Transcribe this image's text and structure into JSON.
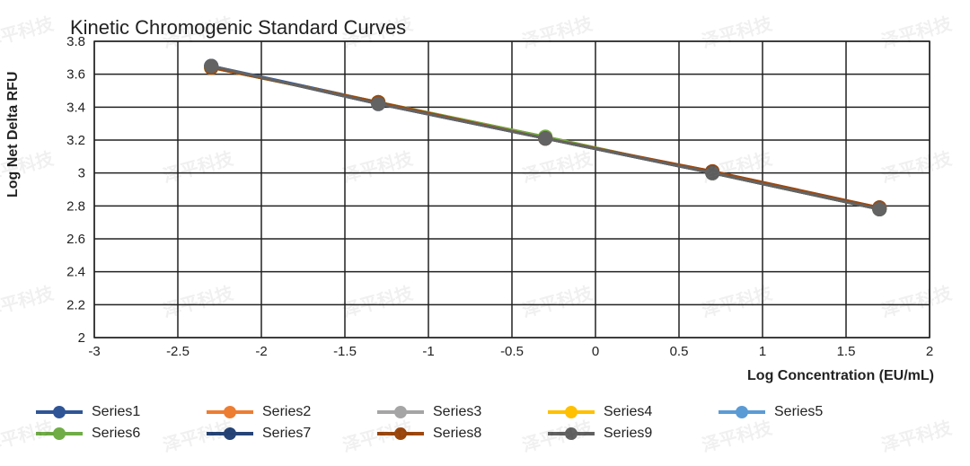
{
  "title": "Kinetic Chromogenic Standard Curves",
  "xlabel": "Log Concentration (EU/mL)",
  "ylabel": "Log Net Delta RFU",
  "chart": {
    "type": "line",
    "xlim": [
      -3,
      2
    ],
    "ylim": [
      2,
      3.8
    ],
    "xtick_step": 0.5,
    "ytick_step": 0.2,
    "xticks": [
      -3,
      -2.5,
      -2,
      -1.5,
      -1,
      -0.5,
      0,
      0.5,
      1,
      1.5,
      2
    ],
    "yticks": [
      2,
      2.2,
      2.4,
      2.6,
      2.8,
      3,
      3.2,
      3.4,
      3.6,
      3.8
    ],
    "background_color": "#ffffff",
    "grid_color": "#222222",
    "grid_width": 1.5,
    "marker": "circle",
    "marker_size": 8,
    "line_width": 3,
    "x": [
      -2.3,
      -1.3,
      -0.3,
      0.7,
      1.7
    ],
    "series": [
      {
        "label": "Series1",
        "color": "#2f5597",
        "y": [
          3.65,
          3.43,
          3.21,
          3.0,
          2.78
        ]
      },
      {
        "label": "Series2",
        "color": "#ed7d31",
        "y": [
          3.64,
          3.43,
          3.22,
          3.0,
          2.79
        ]
      },
      {
        "label": "Series3",
        "color": "#a5a5a5",
        "y": [
          3.65,
          3.42,
          3.21,
          3.01,
          2.79
        ]
      },
      {
        "label": "Series4",
        "color": "#ffc000",
        "y": [
          3.64,
          3.43,
          3.21,
          3.0,
          2.78
        ]
      },
      {
        "label": "Series5",
        "color": "#5b9bd5",
        "y": [
          3.65,
          3.42,
          3.21,
          3.0,
          2.79
        ]
      },
      {
        "label": "Series6",
        "color": "#70ad47",
        "y": [
          3.64,
          3.43,
          3.22,
          3.0,
          2.78
        ]
      },
      {
        "label": "Series7",
        "color": "#264478",
        "y": [
          3.65,
          3.42,
          3.21,
          3.0,
          2.78
        ]
      },
      {
        "label": "Series8",
        "color": "#9e480e",
        "y": [
          3.64,
          3.43,
          3.21,
          3.01,
          2.79
        ]
      },
      {
        "label": "Series9",
        "color": "#636363",
        "y": [
          3.65,
          3.42,
          3.21,
          3.0,
          2.78
        ]
      }
    ]
  },
  "watermark_text": "泽平科技"
}
